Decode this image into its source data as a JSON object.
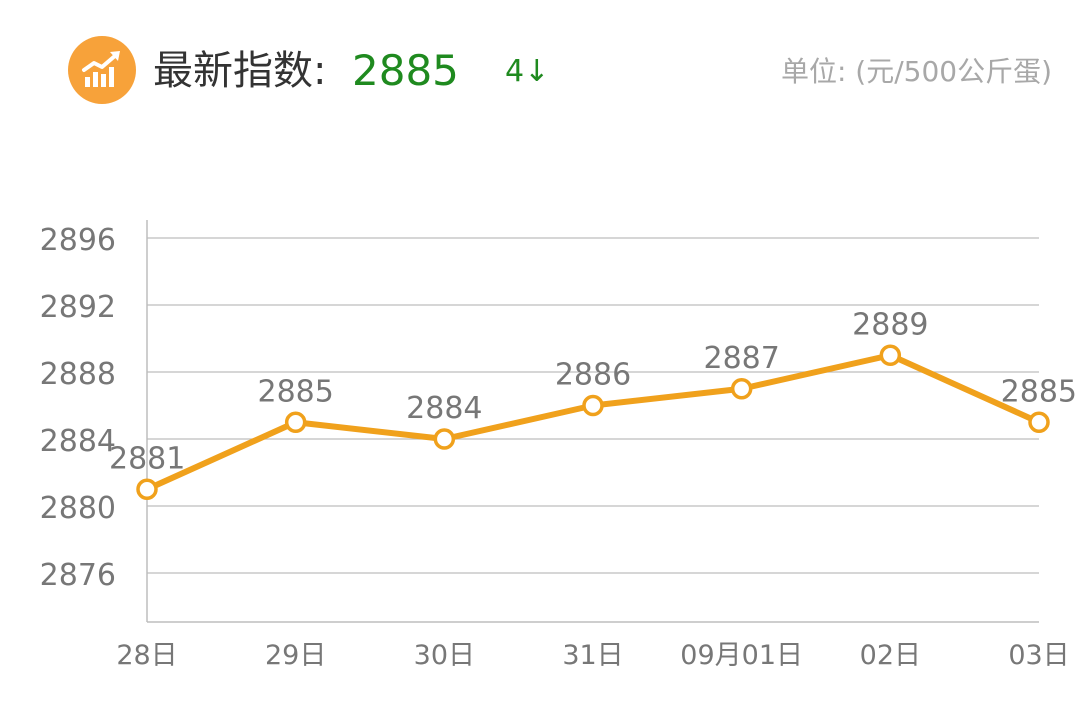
{
  "header": {
    "title_label": "最新指数:",
    "title_value": "2885",
    "change": "4↓",
    "unit": "单位: (元/500公斤蛋)",
    "icon": "trend-chart-icon"
  },
  "colors": {
    "accent": "#f0a11c",
    "logo_bg": "#f7a23a",
    "value_green": "#1f8a1f",
    "grid": "#bdbdbd",
    "text_gray": "#777777"
  },
  "chart_data": {
    "type": "line",
    "title": "",
    "xlabel": "",
    "ylabel": "",
    "categories": [
      "28日",
      "29日",
      "30日",
      "31日",
      "09月01日",
      "02日",
      "03日"
    ],
    "series": [
      {
        "values": [
          2881,
          2885,
          2884,
          2886,
          2887,
          2889,
          2885
        ]
      }
    ],
    "data_labels": [
      "2881",
      "2885",
      "2884",
      "2886",
      "2887",
      "2889",
      "2885"
    ],
    "yticks": [
      "2876",
      "2880",
      "2884",
      "2888",
      "2892",
      "2896"
    ],
    "ytick_values": [
      2876,
      2880,
      2884,
      2888,
      2892,
      2896
    ],
    "ylim": [
      2873,
      2897
    ],
    "grid": true,
    "legend": "none"
  }
}
